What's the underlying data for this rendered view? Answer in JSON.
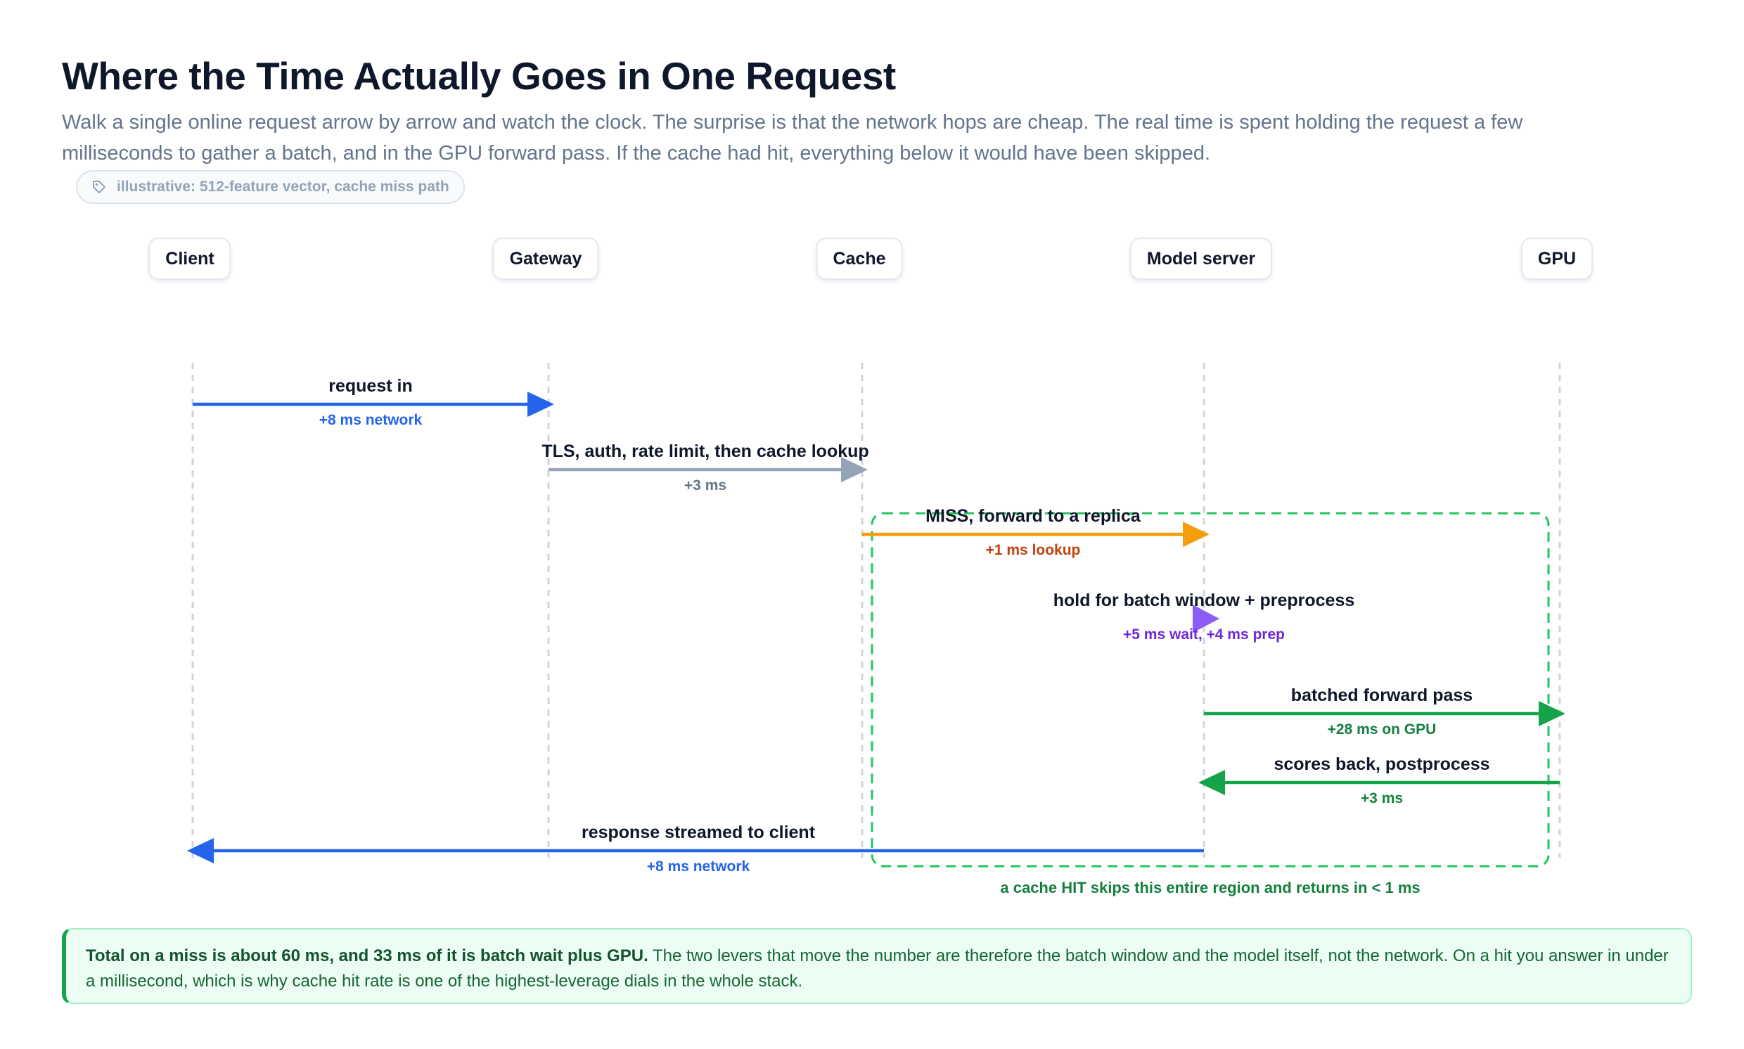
{
  "header": {
    "title": "Where the Time Actually Goes in One Request",
    "subtitle": "Walk a single online request arrow by arrow and watch the clock. The surprise is that the network hops are cheap. The real time is spent holding the request a few milliseconds to gather a batch, and in the GPU forward pass. If the cache had hit, everything below it would have been skipped.",
    "chip_label": "illustrative: 512-feature vector, cache miss path",
    "chip_icon": "tag-icon"
  },
  "participants": [
    "Client",
    "Gateway",
    "Cache",
    "Model server",
    "GPU"
  ],
  "messages": [
    {
      "from": 0,
      "to": 1,
      "label": "request in",
      "sub": "+8 ms network",
      "color": "#2563eb",
      "sub_color": "#2563eb"
    },
    {
      "from": 1,
      "to": 2,
      "label": "TLS, auth, rate limit, then cache lookup",
      "sub": "+3 ms",
      "color": "#94a3b8",
      "sub_color": "#64748b"
    },
    {
      "from": 2,
      "to": 3,
      "label": "MISS, forward to a replica",
      "sub": "+1 ms lookup",
      "color": "#f59e0b",
      "sub_color": "#c2410c"
    },
    {
      "from": 3,
      "to": 3,
      "label": "hold for batch window + preprocess",
      "sub": "+5 ms wait, +4 ms prep",
      "color": "#8b5cf6",
      "sub_color": "#6d28d9"
    },
    {
      "from": 3,
      "to": 4,
      "label": "batched forward pass",
      "sub": "+28 ms on GPU",
      "color": "#16a34a",
      "sub_color": "#15803d"
    },
    {
      "from": 4,
      "to": 3,
      "label": "scores back, postprocess",
      "sub": "+3 ms",
      "color": "#16a34a",
      "sub_color": "#15803d"
    },
    {
      "from": 3,
      "to": 0,
      "label": "response streamed to client",
      "sub": "+8 ms network",
      "color": "#2563eb",
      "sub_color": "#2563eb"
    }
  ],
  "region_note": "a cache HIT skips this entire region and returns in < 1 ms",
  "region_color": "#22c55e",
  "callout": {
    "bold": "Total on a miss is about 60 ms, and 33 ms of it is batch wait plus GPU.",
    "rest": " The two levers that move the number are therefore the batch window and the model itself, not the network. On a hit you answer in under a millisecond, which is why cache hit rate is one of the highest-leverage dials in the whole stack."
  }
}
